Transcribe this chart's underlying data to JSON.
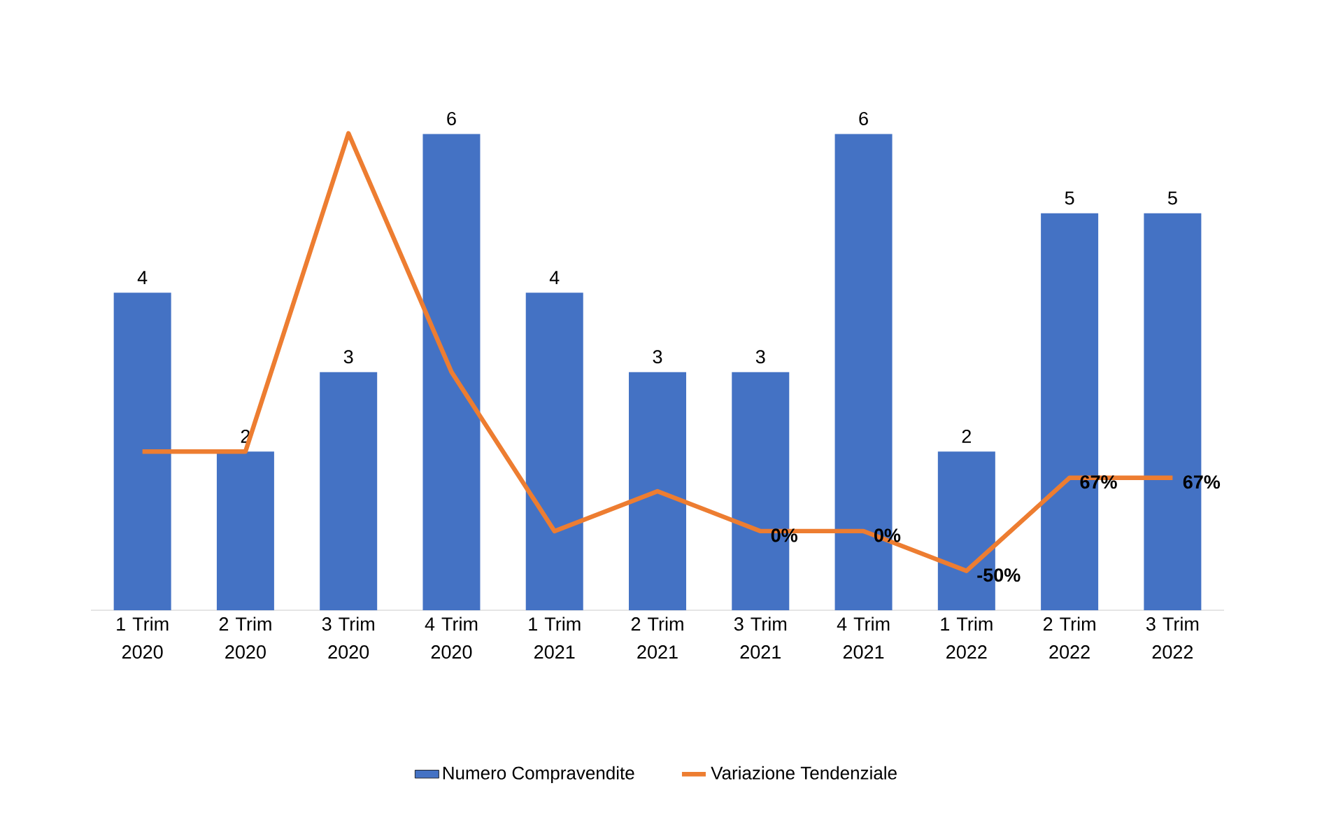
{
  "chart_data": {
    "type": "bar",
    "categories": [
      "1 Trim 2020",
      "2 Trim 2020",
      "3 Trim 2020",
      "4 Trim 2020",
      "1 Trim 2021",
      "2 Trim 2021",
      "3 Trim 2021",
      "4 Trim 2021",
      "1 Trim 2022",
      "2 Trim 2022",
      "3 Trim 2022"
    ],
    "series": [
      {
        "name": "Numero Compravendite",
        "color": "#4472c4",
        "values": [
          4,
          2,
          3,
          6,
          4,
          3,
          3,
          6,
          2,
          5,
          5
        ],
        "value_labels": [
          "4",
          "2",
          "3",
          "6",
          "4",
          "3",
          "3",
          "6",
          "2",
          "5",
          "5"
        ]
      },
      {
        "name": "Variazione Tendenziale",
        "type": "line",
        "axis": "y2",
        "color": "#ed7d31",
        "values": [
          100,
          100,
          500,
          200,
          0,
          50,
          0,
          0,
          -50,
          67,
          67
        ],
        "value_labels": [
          null,
          null,
          null,
          null,
          null,
          null,
          "0%",
          "0%",
          "-50%",
          "67%",
          "67%"
        ]
      }
    ],
    "tick_labels": "x",
    "legend": "bottom",
    "marker": "none",
    "grid": false
  }
}
